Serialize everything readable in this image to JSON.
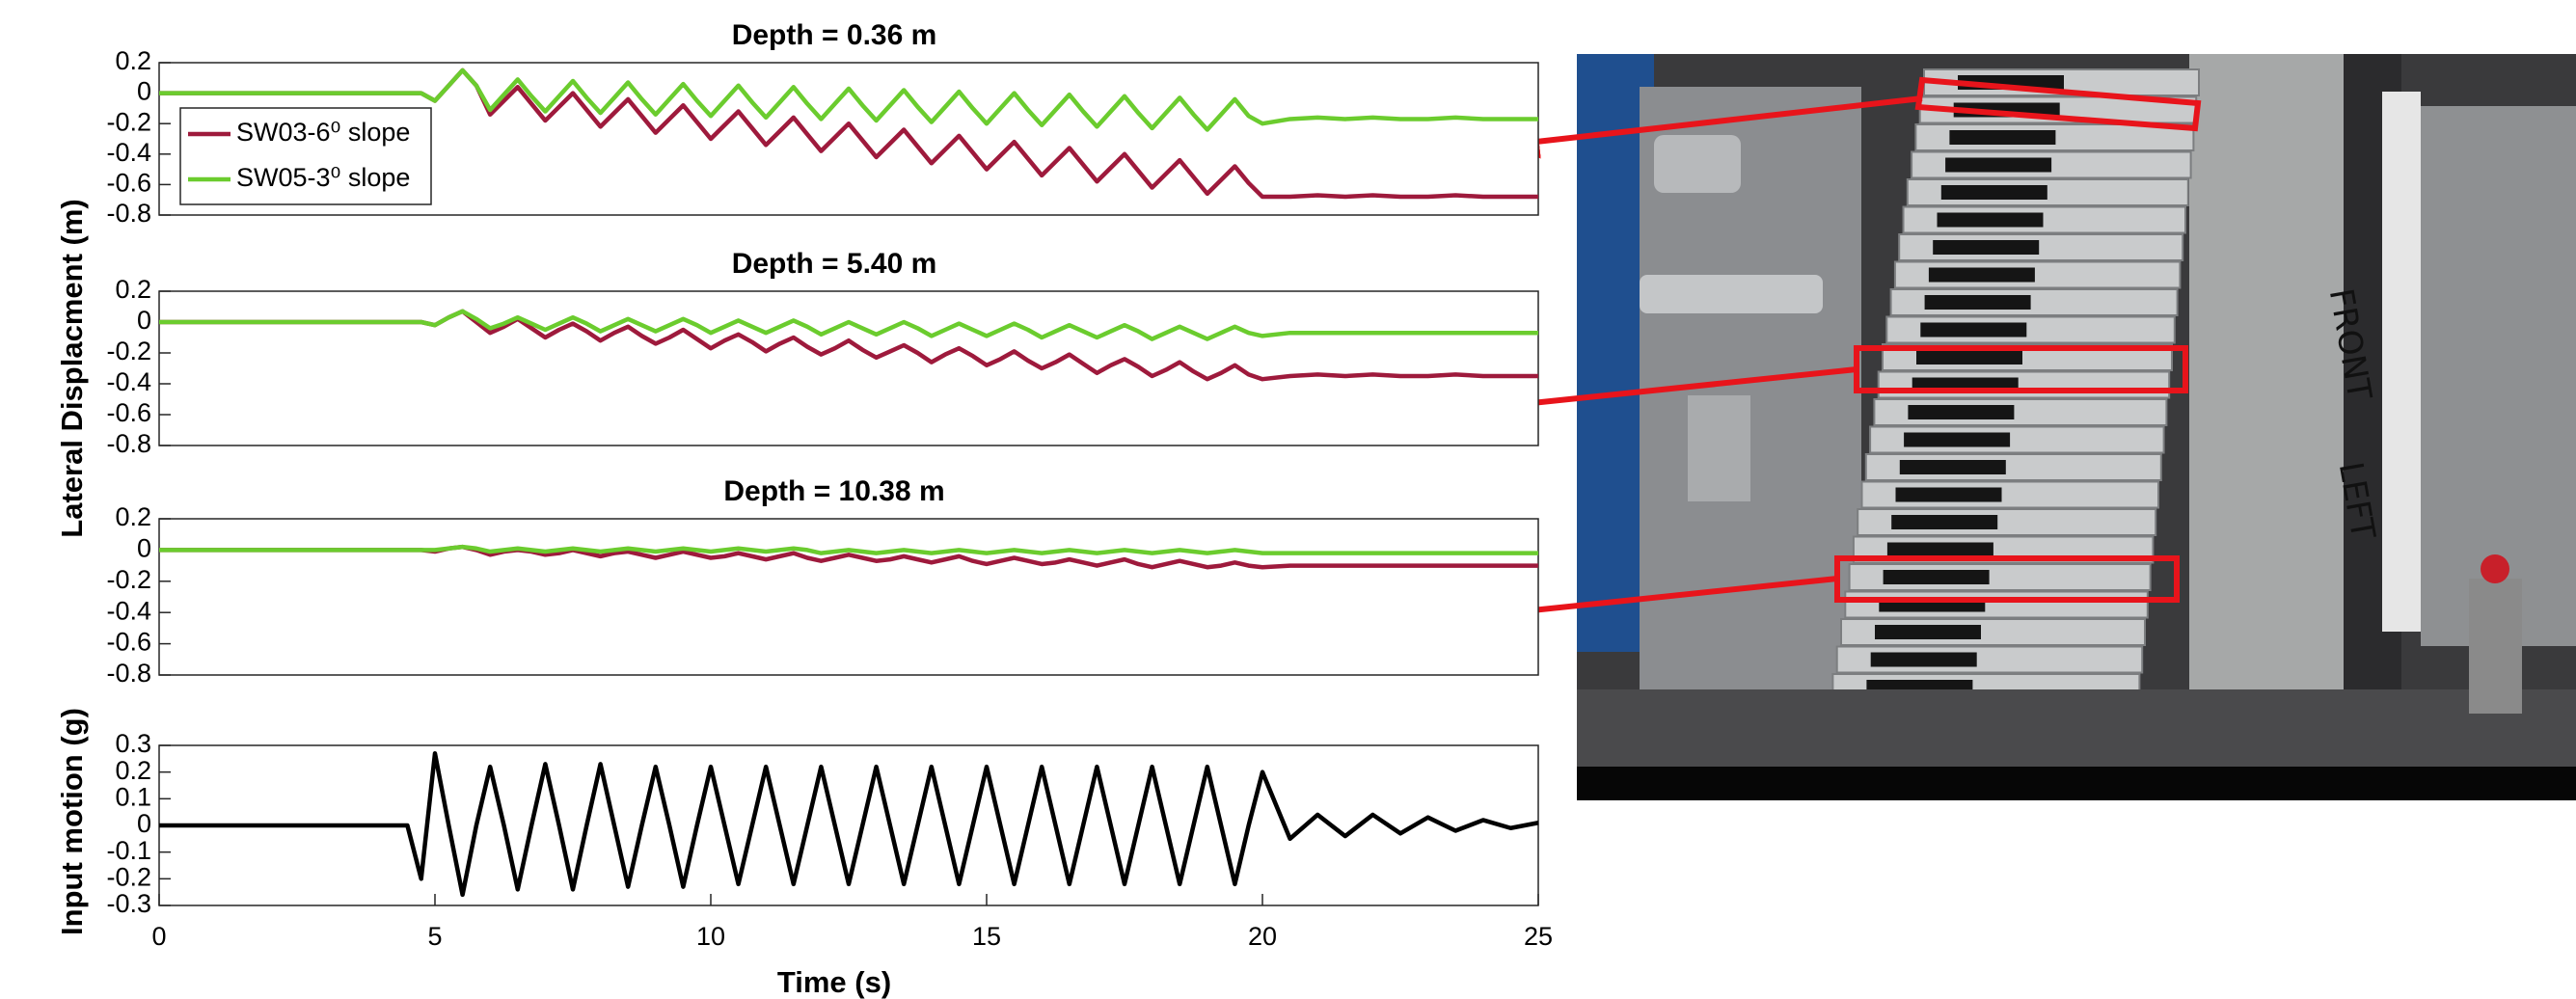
{
  "chart_data": [
    {
      "type": "line",
      "title": "Depth = 0.36 m",
      "x": [
        0,
        2,
        4,
        4.5,
        4.75,
        5,
        5.25,
        5.5,
        5.75,
        6,
        6.25,
        6.5,
        6.75,
        7,
        7.25,
        7.5,
        7.75,
        8,
        8.25,
        8.5,
        8.75,
        9,
        9.25,
        9.5,
        9.75,
        10,
        10.25,
        10.5,
        10.75,
        11,
        11.25,
        11.5,
        11.75,
        12,
        12.25,
        12.5,
        12.75,
        13,
        13.25,
        13.5,
        13.75,
        14,
        14.25,
        14.5,
        14.75,
        15,
        15.25,
        15.5,
        15.75,
        16,
        16.25,
        16.5,
        16.75,
        17,
        17.25,
        17.5,
        17.75,
        18,
        18.25,
        18.5,
        18.75,
        19,
        19.25,
        19.5,
        19.75,
        20,
        20.5,
        21,
        21.5,
        22,
        22.5,
        23,
        23.5,
        24,
        24.5,
        25
      ],
      "xlim": [
        0,
        25
      ],
      "ylim": [
        -0.8,
        0.2
      ],
      "yticks": [
        0.2,
        0,
        -0.2,
        -0.4,
        -0.6,
        -0.8
      ],
      "legend": "upper left",
      "series": [
        {
          "name": "SW03-6⁰ slope",
          "color": "#9e1a3c",
          "values": [
            0,
            0,
            0,
            0,
            0,
            -0.05,
            0.05,
            0.15,
            0.05,
            -0.14,
            -0.05,
            0.04,
            -0.07,
            -0.18,
            -0.09,
            0,
            -0.11,
            -0.22,
            -0.13,
            -0.04,
            -0.15,
            -0.26,
            -0.17,
            -0.08,
            -0.19,
            -0.3,
            -0.21,
            -0.12,
            -0.23,
            -0.34,
            -0.25,
            -0.16,
            -0.27,
            -0.38,
            -0.29,
            -0.2,
            -0.31,
            -0.42,
            -0.33,
            -0.24,
            -0.35,
            -0.46,
            -0.37,
            -0.28,
            -0.39,
            -0.5,
            -0.41,
            -0.32,
            -0.43,
            -0.54,
            -0.45,
            -0.36,
            -0.47,
            -0.58,
            -0.49,
            -0.4,
            -0.51,
            -0.62,
            -0.53,
            -0.44,
            -0.55,
            -0.66,
            -0.57,
            -0.48,
            -0.59,
            -0.68,
            -0.68,
            -0.67,
            -0.68,
            -0.67,
            -0.68,
            -0.68,
            -0.67,
            -0.68,
            -0.68,
            -0.68
          ]
        },
        {
          "name": "SW05-3⁰ slope",
          "color": "#6bcc2e",
          "values": [
            0,
            0,
            0,
            0,
            0,
            -0.05,
            0.05,
            0.15,
            0.05,
            -0.11,
            -0.01,
            0.09,
            -0.02,
            -0.12,
            -0.02,
            0.08,
            -0.03,
            -0.13,
            -0.03,
            0.07,
            -0.04,
            -0.14,
            -0.04,
            0.06,
            -0.05,
            -0.15,
            -0.05,
            0.05,
            -0.06,
            -0.16,
            -0.06,
            0.04,
            -0.07,
            -0.17,
            -0.07,
            0.03,
            -0.08,
            -0.18,
            -0.08,
            0.02,
            -0.09,
            -0.19,
            -0.09,
            0.01,
            -0.1,
            -0.2,
            -0.1,
            0,
            -0.11,
            -0.21,
            -0.11,
            -0.01,
            -0.12,
            -0.22,
            -0.12,
            -0.02,
            -0.13,
            -0.23,
            -0.13,
            -0.03,
            -0.14,
            -0.24,
            -0.14,
            -0.04,
            -0.15,
            -0.2,
            -0.17,
            -0.16,
            -0.17,
            -0.16,
            -0.17,
            -0.17,
            -0.16,
            -0.17,
            -0.17,
            -0.17
          ]
        }
      ]
    },
    {
      "type": "line",
      "title": "Depth = 5.40 m",
      "ylabel": "Lateral Displacment (m)",
      "x": [
        0,
        2,
        4,
        4.5,
        4.75,
        5,
        5.25,
        5.5,
        5.75,
        6,
        6.25,
        6.5,
        6.75,
        7,
        7.25,
        7.5,
        7.75,
        8,
        8.25,
        8.5,
        8.75,
        9,
        9.25,
        9.5,
        9.75,
        10,
        10.25,
        10.5,
        10.75,
        11,
        11.25,
        11.5,
        11.75,
        12,
        12.25,
        12.5,
        12.75,
        13,
        13.25,
        13.5,
        13.75,
        14,
        14.25,
        14.5,
        14.75,
        15,
        15.25,
        15.5,
        15.75,
        16,
        16.25,
        16.5,
        16.75,
        17,
        17.25,
        17.5,
        17.75,
        18,
        18.25,
        18.5,
        18.75,
        19,
        19.25,
        19.5,
        19.75,
        20,
        20.5,
        21,
        21.5,
        22,
        22.5,
        23,
        23.5,
        24,
        24.5,
        25
      ],
      "xlim": [
        0,
        25
      ],
      "ylim": [
        -0.8,
        0.2
      ],
      "yticks": [
        0.2,
        0,
        -0.2,
        -0.4,
        -0.6,
        -0.8
      ],
      "series": [
        {
          "color": "#9e1a3c",
          "values": [
            0,
            0,
            0,
            0,
            0,
            -0.02,
            0.03,
            0.07,
            0,
            -0.07,
            -0.03,
            0.02,
            -0.04,
            -0.1,
            -0.05,
            -0.01,
            -0.06,
            -0.12,
            -0.07,
            -0.03,
            -0.09,
            -0.14,
            -0.1,
            -0.05,
            -0.11,
            -0.17,
            -0.12,
            -0.08,
            -0.13,
            -0.19,
            -0.14,
            -0.1,
            -0.16,
            -0.21,
            -0.17,
            -0.12,
            -0.18,
            -0.23,
            -0.19,
            -0.15,
            -0.2,
            -0.26,
            -0.21,
            -0.17,
            -0.22,
            -0.28,
            -0.24,
            -0.19,
            -0.25,
            -0.3,
            -0.26,
            -0.21,
            -0.27,
            -0.33,
            -0.28,
            -0.24,
            -0.29,
            -0.35,
            -0.31,
            -0.26,
            -0.32,
            -0.37,
            -0.33,
            -0.28,
            -0.34,
            -0.37,
            -0.35,
            -0.34,
            -0.35,
            -0.34,
            -0.35,
            -0.35,
            -0.34,
            -0.35,
            -0.35,
            -0.35
          ]
        },
        {
          "color": "#6bcc2e",
          "values": [
            0,
            0,
            0,
            0,
            0,
            -0.02,
            0.03,
            0.07,
            0.02,
            -0.04,
            -0.01,
            0.03,
            -0.01,
            -0.05,
            -0.01,
            0.03,
            -0.01,
            -0.06,
            -0.02,
            0.02,
            -0.02,
            -0.06,
            -0.02,
            0.02,
            -0.02,
            -0.07,
            -0.03,
            0.01,
            -0.03,
            -0.07,
            -0.03,
            0.01,
            -0.03,
            -0.08,
            -0.04,
            0,
            -0.04,
            -0.08,
            -0.04,
            0,
            -0.04,
            -0.09,
            -0.05,
            -0.01,
            -0.05,
            -0.09,
            -0.05,
            -0.01,
            -0.05,
            -0.1,
            -0.06,
            -0.02,
            -0.06,
            -0.1,
            -0.06,
            -0.02,
            -0.06,
            -0.11,
            -0.07,
            -0.03,
            -0.07,
            -0.11,
            -0.07,
            -0.03,
            -0.07,
            -0.09,
            -0.07,
            -0.07,
            -0.07,
            -0.07,
            -0.07,
            -0.07,
            -0.07,
            -0.07,
            -0.07,
            -0.07
          ]
        }
      ]
    },
    {
      "type": "line",
      "title": "Depth = 10.38 m",
      "x": [
        0,
        2,
        4,
        4.5,
        4.75,
        5,
        5.25,
        5.5,
        5.75,
        6,
        6.25,
        6.5,
        6.75,
        7,
        7.25,
        7.5,
        7.75,
        8,
        8.25,
        8.5,
        8.75,
        9,
        9.25,
        9.5,
        9.75,
        10,
        10.25,
        10.5,
        10.75,
        11,
        11.25,
        11.5,
        11.75,
        12,
        12.25,
        12.5,
        12.75,
        13,
        13.25,
        13.5,
        13.75,
        14,
        14.25,
        14.5,
        14.75,
        15,
        15.25,
        15.5,
        15.75,
        16,
        16.25,
        16.5,
        16.75,
        17,
        17.25,
        17.5,
        17.75,
        18,
        18.25,
        18.5,
        18.75,
        19,
        19.25,
        19.5,
        19.75,
        20,
        20.5,
        21,
        21.5,
        22,
        22.5,
        23,
        23.5,
        24,
        24.5,
        25
      ],
      "xlim": [
        0,
        25
      ],
      "ylim": [
        -0.8,
        0.2
      ],
      "yticks": [
        0.2,
        0,
        -0.2,
        -0.4,
        -0.6,
        -0.8
      ],
      "series": [
        {
          "color": "#9e1a3c",
          "values": [
            0,
            0,
            0,
            0,
            0,
            -0.01,
            0.01,
            0.02,
            0,
            -0.03,
            -0.01,
            0,
            -0.01,
            -0.03,
            -0.02,
            0,
            -0.02,
            -0.04,
            -0.02,
            -0.01,
            -0.03,
            -0.05,
            -0.03,
            -0.01,
            -0.03,
            -0.05,
            -0.04,
            -0.02,
            -0.04,
            -0.06,
            -0.04,
            -0.02,
            -0.05,
            -0.07,
            -0.05,
            -0.03,
            -0.05,
            -0.07,
            -0.06,
            -0.04,
            -0.06,
            -0.08,
            -0.06,
            -0.04,
            -0.07,
            -0.09,
            -0.07,
            -0.05,
            -0.07,
            -0.09,
            -0.08,
            -0.06,
            -0.08,
            -0.1,
            -0.08,
            -0.06,
            -0.09,
            -0.11,
            -0.09,
            -0.07,
            -0.09,
            -0.11,
            -0.1,
            -0.08,
            -0.1,
            -0.11,
            -0.1,
            -0.1,
            -0.1,
            -0.1,
            -0.1,
            -0.1,
            -0.1,
            -0.1,
            -0.1,
            -0.1
          ]
        },
        {
          "color": "#6bcc2e",
          "values": [
            0,
            0,
            0,
            0,
            0,
            0,
            0.01,
            0.02,
            0.01,
            -0.01,
            0,
            0.01,
            0,
            -0.01,
            0,
            0.01,
            0,
            -0.01,
            0,
            0.01,
            0,
            -0.01,
            0,
            0.01,
            0,
            -0.01,
            0,
            0.01,
            0,
            -0.01,
            0,
            0.01,
            0,
            -0.02,
            -0.01,
            0,
            -0.01,
            -0.02,
            -0.01,
            0,
            -0.01,
            -0.02,
            -0.01,
            0,
            -0.01,
            -0.02,
            -0.01,
            0,
            -0.01,
            -0.02,
            -0.01,
            0,
            -0.01,
            -0.02,
            -0.01,
            0,
            -0.01,
            -0.02,
            -0.01,
            0,
            -0.01,
            -0.02,
            -0.01,
            0,
            -0.01,
            -0.02,
            -0.02,
            -0.02,
            -0.02,
            -0.02,
            -0.02,
            -0.02,
            -0.02,
            -0.02,
            -0.02,
            -0.02
          ]
        }
      ]
    },
    {
      "type": "line",
      "ylabel": "Input motion (g)",
      "xlabel": "Time (s)",
      "x": [
        0,
        2,
        4,
        4.5,
        4.75,
        5,
        5.25,
        5.5,
        5.75,
        6,
        6.25,
        6.5,
        6.75,
        7,
        7.25,
        7.5,
        7.75,
        8,
        8.25,
        8.5,
        8.75,
        9,
        9.25,
        9.5,
        9.75,
        10,
        10.25,
        10.5,
        10.75,
        11,
        11.25,
        11.5,
        11.75,
        12,
        12.25,
        12.5,
        12.75,
        13,
        13.25,
        13.5,
        13.75,
        14,
        14.25,
        14.5,
        14.75,
        15,
        15.25,
        15.5,
        15.75,
        16,
        16.25,
        16.5,
        16.75,
        17,
        17.25,
        17.5,
        17.75,
        18,
        18.25,
        18.5,
        18.75,
        19,
        19.25,
        19.5,
        19.75,
        20,
        20.5,
        21,
        21.5,
        22,
        22.5,
        23,
        23.5,
        24,
        24.5,
        25
      ],
      "xlim": [
        0,
        25
      ],
      "xticks": [
        0,
        5,
        10,
        15,
        20,
        25
      ],
      "ylim": [
        -0.3,
        0.3
      ],
      "yticks": [
        0.3,
        0.2,
        0.1,
        0,
        -0.1,
        -0.2,
        -0.3
      ],
      "series": [
        {
          "color": "#000000",
          "values": [
            0,
            0,
            0,
            0,
            -0.2,
            0.27,
            0,
            -0.26,
            0,
            0.22,
            0,
            -0.24,
            0,
            0.23,
            0,
            -0.24,
            0,
            0.23,
            0,
            -0.23,
            0,
            0.22,
            0,
            -0.23,
            0,
            0.22,
            0,
            -0.22,
            0,
            0.22,
            0,
            -0.22,
            0,
            0.22,
            0,
            -0.22,
            0,
            0.22,
            0,
            -0.22,
            0,
            0.22,
            0,
            -0.22,
            0,
            0.22,
            0,
            -0.22,
            0,
            0.22,
            0,
            -0.22,
            0,
            0.22,
            0,
            -0.22,
            0,
            0.22,
            0,
            -0.22,
            0,
            0.22,
            0,
            -0.22,
            0,
            0.2,
            -0.05,
            0.04,
            -0.04,
            0.04,
            -0.03,
            0.03,
            -0.02,
            0.02,
            -0.01,
            0.01
          ]
        }
      ]
    }
  ],
  "photo": {
    "labels": [
      "FRONT",
      "LEFT"
    ]
  }
}
